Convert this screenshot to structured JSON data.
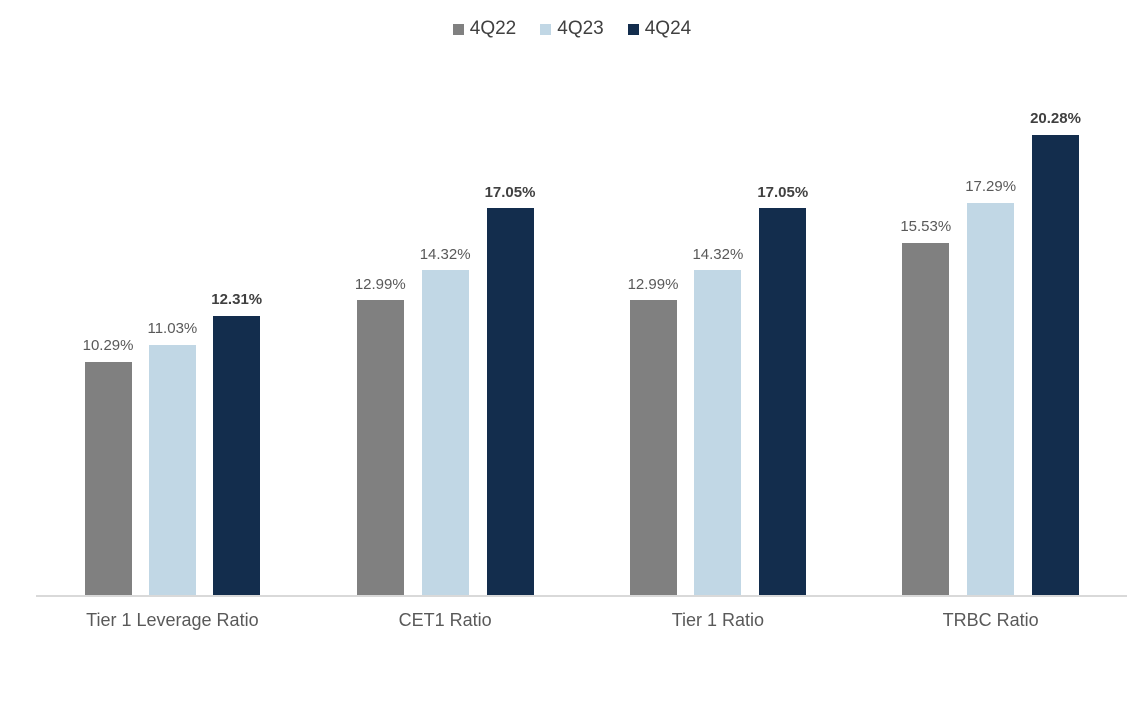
{
  "chart_data": {
    "type": "bar",
    "title": "",
    "xlabel": "",
    "ylabel": "",
    "grid": false,
    "legend_position": "top",
    "ylim": [
      0,
      22.25
    ],
    "categories": [
      "Tier 1 Leverage Ratio",
      "CET1 Ratio",
      "Tier 1 Ratio",
      "TRBC Ratio"
    ],
    "series": [
      {
        "name": "4Q22",
        "color": "#808080",
        "values": [
          10.29,
          12.99,
          12.99,
          15.53
        ],
        "labels": [
          "10.29%",
          "12.99%",
          "12.99%",
          "15.53%"
        ],
        "label_bold": false
      },
      {
        "name": "4Q23",
        "color": "#C1D7E5",
        "values": [
          11.03,
          14.32,
          14.32,
          17.29
        ],
        "labels": [
          "11.03%",
          "14.32%",
          "14.32%",
          "17.29%"
        ],
        "label_bold": false
      },
      {
        "name": "4Q24",
        "color": "#132D4D",
        "values": [
          12.31,
          17.05,
          17.05,
          20.28
        ],
        "labels": [
          "12.31%",
          "17.05%",
          "17.05%",
          "20.28%"
        ],
        "label_bold": true
      }
    ]
  },
  "colors": {
    "background": "#FFFFFF",
    "axis_line": "#D9D9D9",
    "data_label": "#595959",
    "data_label_bold": "#404040",
    "category_label": "#595959",
    "legend_text": "#404040"
  }
}
